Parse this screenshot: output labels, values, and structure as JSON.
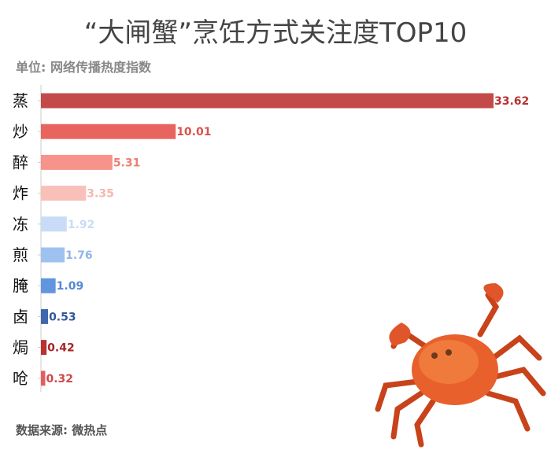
{
  "title": "“大闸蟹”烹饪方式关注度TOP10",
  "subtitle": "单位: 网络传播热度指数",
  "source": "数据来源: 微热点",
  "chart_data": {
    "type": "bar",
    "orientation": "horizontal",
    "title": "“大闸蟹”烹饪方式关注度TOP10",
    "categories": [
      "蒸",
      "炒",
      "醉",
      "炸",
      "冻",
      "煎",
      "腌",
      "卤",
      "焗",
      "呛"
    ],
    "values": [
      33.62,
      10.01,
      5.31,
      3.35,
      1.92,
      1.76,
      1.09,
      0.53,
      0.42,
      0.32
    ],
    "colors": [
      "#c44a4a",
      "#e8655f",
      "#f7938a",
      "#f8c0b9",
      "#c8dcf7",
      "#9fc1f0",
      "#6195dd",
      "#3e68ae",
      "#b83232",
      "#e06060"
    ],
    "label_colors": [
      "#b83232",
      "#d9524c",
      "#ee7e74",
      "#f6b7ae",
      "#c8dcf7",
      "#8fb6ec",
      "#5588d6",
      "#30579a",
      "#a82424",
      "#d04848"
    ],
    "xlim": [
      0,
      33.62
    ],
    "grid": false,
    "data_labels": true
  }
}
